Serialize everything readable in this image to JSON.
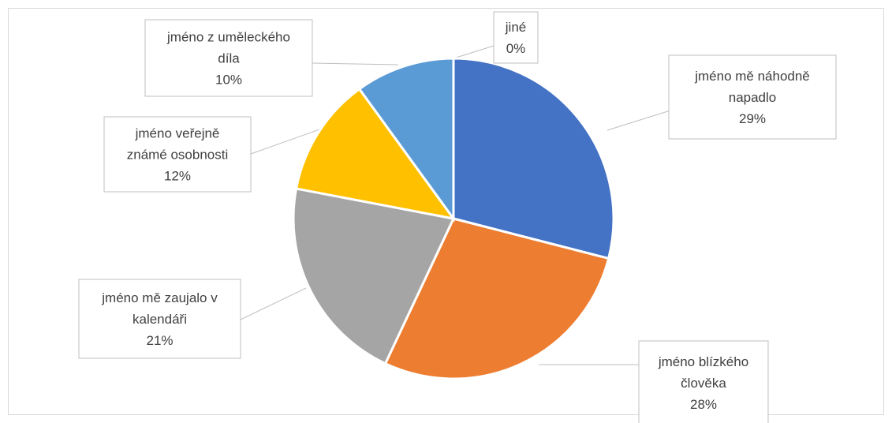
{
  "chart_data": {
    "type": "pie",
    "title": "",
    "slices": [
      {
        "name": "jméno mě náhodně napadlo",
        "label_lines": [
          "jméno mě náhodně",
          "napadlo"
        ],
        "value": 29,
        "value_label": "29%",
        "color": "#4472C4"
      },
      {
        "name": "jméno blízkého člověka",
        "label_lines": [
          "jméno blízkého",
          "člověka"
        ],
        "value": 28,
        "value_label": "28%",
        "color": "#ED7D31"
      },
      {
        "name": "jméno mě zaujalo v kalendáři",
        "label_lines": [
          "jméno mě zaujalo v",
          "kalendáři"
        ],
        "value": 21,
        "value_label": "21%",
        "color": "#A5A5A5"
      },
      {
        "name": "jméno veřejně známé osobnosti",
        "label_lines": [
          "jméno veřejně",
          "známé osobnosti"
        ],
        "value": 12,
        "value_label": "12%",
        "color": "#FFC000"
      },
      {
        "name": "jméno z uměleckého díla",
        "label_lines": [
          "jméno z uměleckého",
          "díla"
        ],
        "value": 10,
        "value_label": "10%",
        "color": "#5B9BD5"
      },
      {
        "name": "jiné",
        "label_lines": [
          "jiné"
        ],
        "value": 0,
        "value_label": "0%",
        "color": "#70AD47"
      }
    ]
  }
}
